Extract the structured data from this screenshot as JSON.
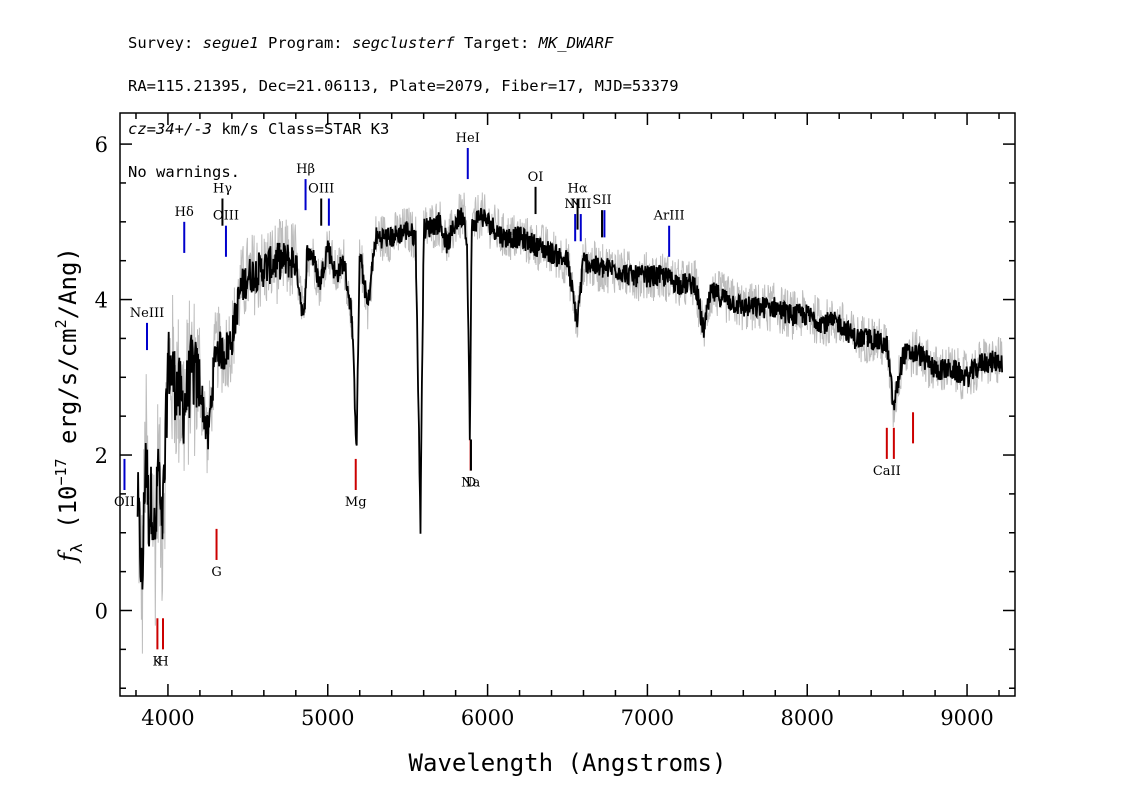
{
  "header": {
    "line1": {
      "survey_label": "Survey: ",
      "survey": "segue1",
      "program_label": " Program: ",
      "program": "segclusterf",
      "target_label": " Target: ",
      "target": "MK_DWARF"
    },
    "line2": "RA=115.21395, Dec=21.06113, Plate=2079, Fiber=17, MJD=53379",
    "line3": {
      "cz": "cz=34+/-3",
      "rest": " km/s Class=STAR K3"
    },
    "line4": "No warnings."
  },
  "chart_data": {
    "type": "line",
    "xlabel": "Wavelength (Angstroms)",
    "ylabel": "f_λ (10^-17 erg/s/cm^2/Ang)",
    "ylabel_parts": {
      "f": "f",
      "lambda_sub": "λ",
      "open": " (10",
      "exp": "−17",
      "mid": " erg/s/cm",
      "exp2": "2",
      "close": "/Ang)"
    },
    "xlim": [
      3700,
      9300
    ],
    "ylim": [
      -1.1,
      6.4
    ],
    "x_ticks": [
      4000,
      5000,
      6000,
      7000,
      8000,
      9000
    ],
    "y_ticks": [
      0,
      2,
      4,
      6
    ],
    "grid": false,
    "colors": {
      "smoothed": "#000000",
      "raw": "#bdbdbd",
      "emission": "#0000cc",
      "absorption": "#cc0000",
      "neutral": "#000000"
    },
    "series": [
      {
        "role": "smoothed spectrum",
        "x": [
          3810,
          3840,
          3860,
          3880,
          3900,
          3920,
          3940,
          3960,
          3980,
          4000,
          4050,
          4100,
          4150,
          4200,
          4250,
          4300,
          4350,
          4400,
          4450,
          4500,
          4600,
          4700,
          4800,
          4850,
          4870,
          4900,
          4950,
          5000,
          5050,
          5100,
          5150,
          5180,
          5200,
          5250,
          5300,
          5400,
          5500,
          5550,
          5580,
          5600,
          5700,
          5750,
          5800,
          5850,
          5870,
          5890,
          5900,
          5950,
          6000,
          6100,
          6200,
          6300,
          6400,
          6500,
          6560,
          6600,
          6700,
          6800,
          6900,
          7000,
          7100,
          7200,
          7300,
          7350,
          7400,
          7500,
          7600,
          7700,
          7800,
          7900,
          8000,
          8100,
          8200,
          8300,
          8400,
          8500,
          8540,
          8600,
          8700,
          8800,
          8900,
          9000,
          9100,
          9200
        ],
        "y": [
          1.4,
          0.3,
          2.2,
          1.2,
          1.5,
          0.8,
          2.0,
          0.9,
          1.8,
          3.2,
          2.9,
          2.6,
          3.1,
          2.9,
          2.2,
          3.4,
          3.3,
          3.5,
          4.1,
          4.3,
          4.4,
          4.5,
          4.5,
          3.7,
          4.6,
          4.6,
          4.2,
          4.7,
          4.3,
          4.5,
          3.8,
          2.1,
          4.6,
          3.9,
          4.8,
          4.8,
          4.9,
          4.8,
          1.1,
          4.9,
          5.0,
          4.7,
          5.0,
          5.1,
          4.8,
          2.2,
          4.9,
          5.1,
          5.0,
          4.8,
          4.8,
          4.7,
          4.6,
          4.5,
          3.7,
          4.5,
          4.4,
          4.4,
          4.3,
          4.3,
          4.3,
          4.2,
          4.2,
          3.6,
          4.1,
          4.0,
          3.9,
          3.9,
          3.9,
          3.8,
          3.8,
          3.7,
          3.7,
          3.5,
          3.5,
          3.4,
          2.6,
          3.3,
          3.3,
          3.1,
          3.1,
          3.0,
          3.2,
          3.2
        ]
      }
    ],
    "lines": [
      {
        "label": "OII",
        "x": 3728,
        "color": "emission",
        "y_top": 1.95,
        "y_bottom": 1.55
      },
      {
        "label": "NeIII",
        "x": 3869,
        "color": "emission",
        "y_top": 3.7,
        "y_bottom": 3.35
      },
      {
        "label": "Hδ",
        "x": 4102,
        "color": "emission",
        "y_top": 5.0,
        "y_bottom": 4.6
      },
      {
        "label": "Hγ",
        "x": 4341,
        "color": "neutral",
        "y_top": 5.3,
        "y_bottom": 4.95
      },
      {
        "label": "OIII",
        "x": 4363,
        "color": "emission",
        "y_top": 4.95,
        "y_bottom": 4.55
      },
      {
        "label": "Hβ",
        "x": 4861,
        "color": "emission",
        "y_top": 5.55,
        "y_bottom": 5.15
      },
      {
        "label": "OIII",
        "x": 4959,
        "color": "neutral",
        "y_top": 5.3,
        "y_bottom": 4.95
      },
      {
        "label": "",
        "x": 5007,
        "color": "emission",
        "y_top": 5.3,
        "y_bottom": 4.95
      },
      {
        "label": "HeI",
        "x": 5876,
        "color": "emission",
        "y_top": 5.95,
        "y_bottom": 5.55
      },
      {
        "label": "OI",
        "x": 6300,
        "color": "neutral",
        "y_top": 5.45,
        "y_bottom": 5.1
      },
      {
        "label": "NII",
        "x": 6548,
        "color": "emission",
        "y_top": 5.1,
        "y_bottom": 4.75
      },
      {
        "label": "Hα",
        "x": 6563,
        "color": "neutral",
        "y_top": 5.3,
        "y_bottom": 4.9
      },
      {
        "label": "NII",
        "x": 6583,
        "color": "emission",
        "y_top": 5.1,
        "y_bottom": 4.75
      },
      {
        "label": "SII",
        "x": 6716,
        "color": "neutral",
        "y_top": 5.15,
        "y_bottom": 4.8
      },
      {
        "label": "",
        "x": 6731,
        "color": "emission",
        "y_top": 5.15,
        "y_bottom": 4.8
      },
      {
        "label": "ArIII",
        "x": 7136,
        "color": "emission",
        "y_top": 4.95,
        "y_bottom": 4.55
      },
      {
        "label": "K",
        "x": 3934,
        "color": "absorption",
        "y_top": -0.1,
        "y_bottom": -0.5
      },
      {
        "label": "H",
        "x": 3969,
        "color": "absorption",
        "y_top": -0.1,
        "y_bottom": -0.5
      },
      {
        "label": "G",
        "x": 4304,
        "color": "absorption",
        "y_top": 1.05,
        "y_bottom": 0.65
      },
      {
        "label": "Mg",
        "x": 5175,
        "color": "absorption",
        "y_top": 1.95,
        "y_bottom": 1.55
      },
      {
        "label": "Na",
        "x": 5894,
        "color": "absorption",
        "y_top": 2.2,
        "y_bottom": 1.8
      },
      {
        "label": "D",
        "x": 5896,
        "color": "neutral",
        "y_top": 2.2,
        "y_bottom": 1.8
      },
      {
        "label": "CaII",
        "x": 8498,
        "color": "absorption",
        "y_top": 2.35,
        "y_bottom": 1.95
      },
      {
        "label": "",
        "x": 8542,
        "color": "absorption",
        "y_top": 2.35,
        "y_bottom": 1.95
      },
      {
        "label": "",
        "x": 8662,
        "color": "absorption",
        "y_top": 2.55,
        "y_bottom": 2.15
      }
    ]
  }
}
